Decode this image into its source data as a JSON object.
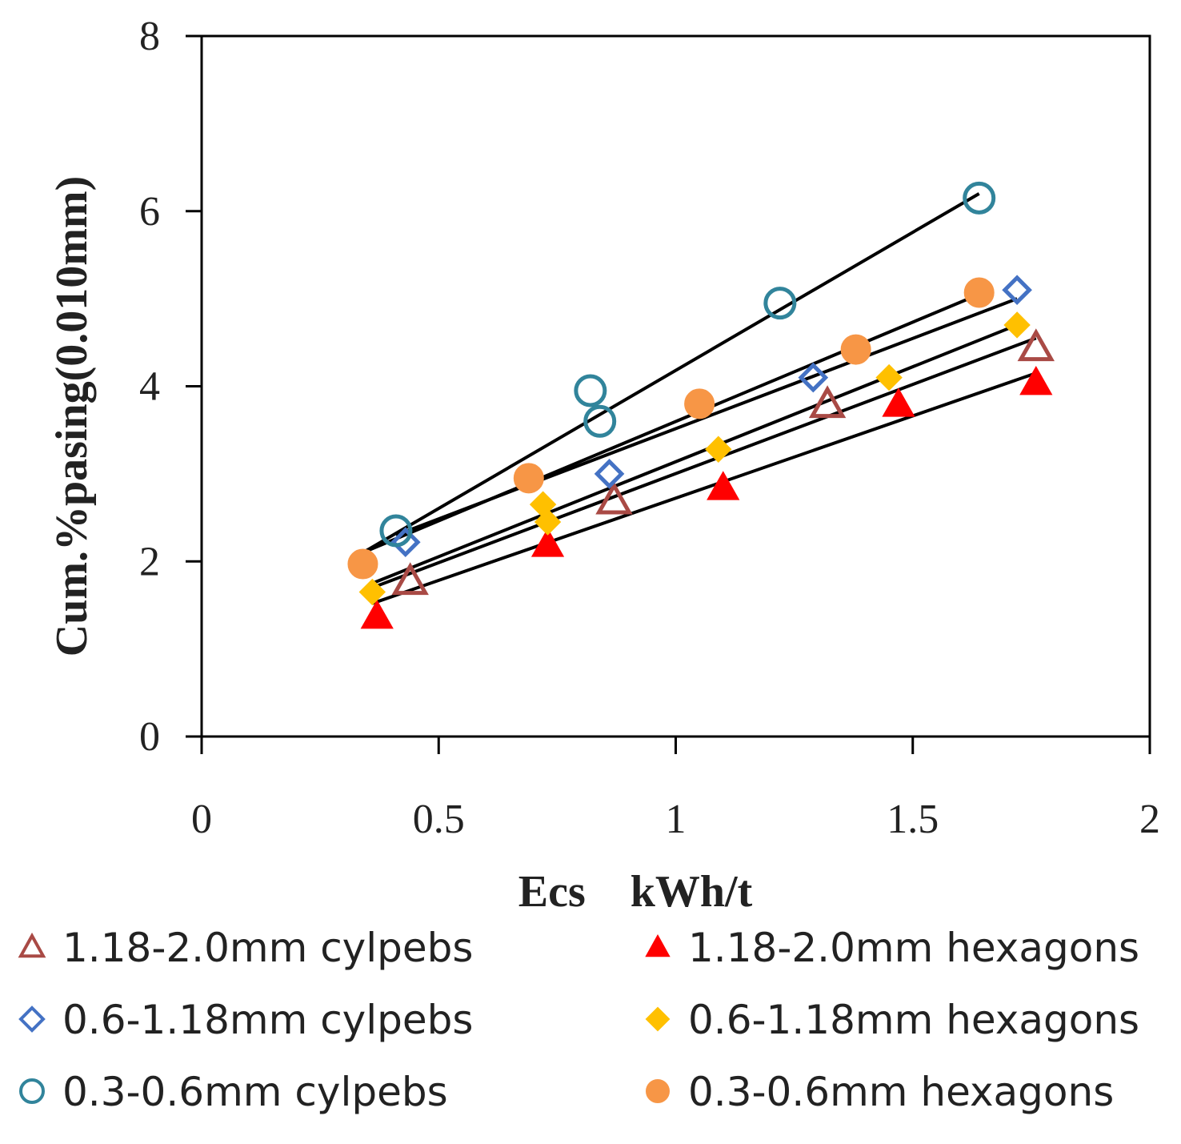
{
  "chart_data": {
    "type": "scatter",
    "title": "",
    "xlabel": "Ecs    kWh/t",
    "ylabel": "Cum.%pasing(0.010mm)",
    "xlim": [
      0,
      2
    ],
    "ylim": [
      0,
      8
    ],
    "xticks": [
      0,
      0.5,
      1,
      1.5,
      2
    ],
    "xtick_labels": [
      "0",
      "0.5",
      "1",
      "1.5",
      "2"
    ],
    "yticks": [
      0,
      2,
      4,
      6,
      8
    ],
    "ytick_labels": [
      "0",
      "2",
      "4",
      "6",
      "8"
    ],
    "grid": false,
    "legend_position": "bottom",
    "series": [
      {
        "name": "1.18-2.0mm cylpebs",
        "marker": "triangle-open",
        "color": "#a94a45",
        "points": [
          [
            0.44,
            1.78
          ],
          [
            0.87,
            2.7
          ],
          [
            1.32,
            3.8
          ],
          [
            1.76,
            4.45
          ]
        ],
        "trendline": [
          [
            0.36,
            1.7
          ],
          [
            1.76,
            4.55
          ]
        ]
      },
      {
        "name": "1.18-2.0mm hexagons",
        "marker": "triangle-filled",
        "color": "#ff0000",
        "points": [
          [
            0.37,
            1.38
          ],
          [
            0.73,
            2.2
          ],
          [
            1.1,
            2.85
          ],
          [
            1.47,
            3.8
          ],
          [
            1.76,
            4.05
          ]
        ],
        "trendline": [
          [
            0.36,
            1.52
          ],
          [
            1.76,
            4.15
          ]
        ]
      },
      {
        "name": "0.6-1.18mm cylpebs",
        "marker": "diamond-open",
        "color": "#4472c4",
        "points": [
          [
            0.43,
            2.22
          ],
          [
            0.86,
            3.0
          ],
          [
            1.29,
            4.1
          ],
          [
            1.72,
            5.1
          ]
        ],
        "trendline": [
          [
            0.41,
            2.3
          ],
          [
            1.72,
            5.0
          ]
        ]
      },
      {
        "name": "0.6-1.18mm hexagons",
        "marker": "diamond-filled",
        "color": "#ffc000",
        "points": [
          [
            0.36,
            1.65
          ],
          [
            0.72,
            2.65
          ],
          [
            0.73,
            2.45
          ],
          [
            1.09,
            3.28
          ],
          [
            1.45,
            4.1
          ],
          [
            1.72,
            4.7
          ]
        ],
        "trendline": [
          [
            0.36,
            1.75
          ],
          [
            1.72,
            4.7
          ]
        ]
      },
      {
        "name": "0.3-0.6mm cylpebs",
        "marker": "circle-open",
        "color": "#31849b",
        "points": [
          [
            0.41,
            2.35
          ],
          [
            0.82,
            3.95
          ],
          [
            0.84,
            3.6
          ],
          [
            1.22,
            4.95
          ],
          [
            1.64,
            6.15
          ]
        ],
        "trendline": [
          [
            0.34,
            2.1
          ],
          [
            1.64,
            6.2
          ]
        ]
      },
      {
        "name": "0.3-0.6mm hexagons",
        "marker": "circle-filled",
        "color": "#f79646",
        "points": [
          [
            0.34,
            1.97
          ],
          [
            0.69,
            2.95
          ],
          [
            1.05,
            3.8
          ],
          [
            1.38,
            4.42
          ],
          [
            1.64,
            5.07
          ]
        ],
        "trendline": [
          [
            0.34,
            2.1
          ],
          [
            1.64,
            5.05
          ]
        ]
      }
    ]
  }
}
